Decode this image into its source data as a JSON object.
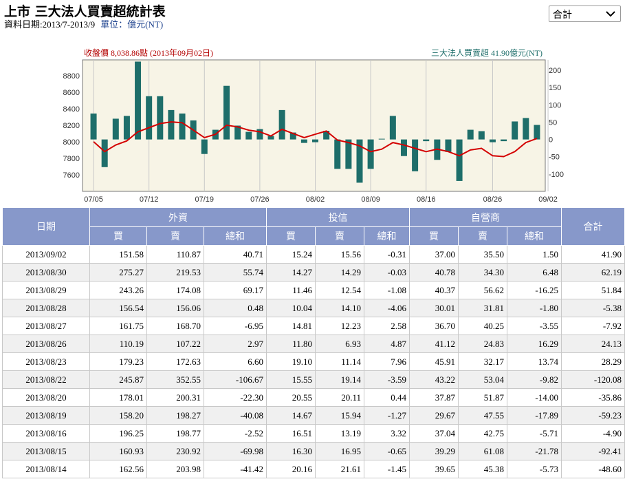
{
  "header": {
    "title": "上市 三大法人買賣超統計表",
    "date_range": "資料日期:2013/7-2013/9",
    "unit": "單位：億元(NT)"
  },
  "filter": {
    "selected": "合計"
  },
  "chart_data": {
    "type": "bar+line",
    "left_label": "收盤價 8,038.86點 (2013年09月02日)",
    "right_label": "三大法人買賣超 41.90億元(NT)",
    "colors": {
      "bar": "#1e6e6a",
      "line": "#d40000",
      "plot_bg": "#f7f4e6",
      "left_label": "#b30000",
      "right_label": "#1e6e6a"
    },
    "left_axis": {
      "min": 7400,
      "max": 8990,
      "ticks": [
        7600,
        7800,
        8000,
        8200,
        8400,
        8600,
        8800
      ]
    },
    "right_axis": {
      "min": -150,
      "max": 230,
      "ticks": [
        -100,
        -50,
        0,
        50,
        100,
        150,
        200
      ]
    },
    "x_tick_labels": [
      "07/05",
      "07/12",
      "07/19",
      "07/26",
      "08/02",
      "08/09",
      "08/16",
      "08/26",
      "09/02"
    ],
    "x_tick_index": [
      0,
      5,
      10,
      15,
      20,
      25,
      30,
      36,
      41
    ],
    "series": [
      {
        "kind": "bar",
        "values": [
          75,
          -80,
          60,
          68,
          225,
          125,
          125,
          85,
          75,
          55,
          -42,
          28,
          155,
          40,
          22,
          30,
          10,
          85,
          20,
          -10,
          -8,
          25,
          -85,
          -85,
          -125,
          -85,
          2,
          68,
          -48,
          -92,
          -5,
          -59,
          -36,
          -120,
          28,
          24,
          -8,
          -5,
          52,
          62,
          42
        ]
      },
      {
        "kind": "line",
        "values": [
          8000,
          7880,
          7960,
          8010,
          8120,
          8170,
          8220,
          8240,
          8230,
          8140,
          8050,
          8090,
          8200,
          8180,
          8140,
          8120,
          8070,
          8150,
          8100,
          8050,
          8090,
          8130,
          8020,
          7990,
          7950,
          7880,
          7910,
          7990,
          7960,
          7920,
          7880,
          7910,
          7880,
          7830,
          7900,
          7920,
          7830,
          7820,
          7880,
          7990,
          8039
        ]
      }
    ]
  },
  "table": {
    "group_headers": {
      "date": "日期",
      "foreign": "外資",
      "trust": "投信",
      "dealer": "自營商",
      "total": "合計"
    },
    "sub_headers": [
      "買",
      "賣",
      "總和",
      "買",
      "賣",
      "總和",
      "買",
      "賣",
      "總和"
    ],
    "rows": [
      [
        "2013/09/02",
        "151.58",
        "110.87",
        "40.71",
        "15.24",
        "15.56",
        "-0.31",
        "37.00",
        "35.50",
        "1.50",
        "41.90"
      ],
      [
        "2013/08/30",
        "275.27",
        "219.53",
        "55.74",
        "14.27",
        "14.29",
        "-0.03",
        "40.78",
        "34.30",
        "6.48",
        "62.19"
      ],
      [
        "2013/08/29",
        "243.26",
        "174.08",
        "69.17",
        "11.46",
        "12.54",
        "-1.08",
        "40.37",
        "56.62",
        "-16.25",
        "51.84"
      ],
      [
        "2013/08/28",
        "156.54",
        "156.06",
        "0.48",
        "10.04",
        "14.10",
        "-4.06",
        "30.01",
        "31.81",
        "-1.80",
        "-5.38"
      ],
      [
        "2013/08/27",
        "161.75",
        "168.70",
        "-6.95",
        "14.81",
        "12.23",
        "2.58",
        "36.70",
        "40.25",
        "-3.55",
        "-7.92"
      ],
      [
        "2013/08/26",
        "110.19",
        "107.22",
        "2.97",
        "11.80",
        "6.93",
        "4.87",
        "41.12",
        "24.83",
        "16.29",
        "24.13"
      ],
      [
        "2013/08/23",
        "179.23",
        "172.63",
        "6.60",
        "19.10",
        "11.14",
        "7.96",
        "45.91",
        "32.17",
        "13.74",
        "28.29"
      ],
      [
        "2013/08/22",
        "245.87",
        "352.55",
        "-106.67",
        "15.55",
        "19.14",
        "-3.59",
        "43.22",
        "53.04",
        "-9.82",
        "-120.08"
      ],
      [
        "2013/08/20",
        "178.01",
        "200.31",
        "-22.30",
        "20.55",
        "20.11",
        "0.44",
        "37.87",
        "51.87",
        "-14.00",
        "-35.86"
      ],
      [
        "2013/08/19",
        "158.20",
        "198.27",
        "-40.08",
        "14.67",
        "15.94",
        "-1.27",
        "29.67",
        "47.55",
        "-17.89",
        "-59.23"
      ],
      [
        "2013/08/16",
        "196.25",
        "198.77",
        "-2.52",
        "16.51",
        "13.19",
        "3.32",
        "37.04",
        "42.75",
        "-5.71",
        "-4.90"
      ],
      [
        "2013/08/15",
        "160.93",
        "230.92",
        "-69.98",
        "16.30",
        "16.95",
        "-0.65",
        "39.29",
        "61.08",
        "-21.78",
        "-92.41"
      ],
      [
        "2013/08/14",
        "162.56",
        "203.98",
        "-41.42",
        "20.16",
        "21.61",
        "-1.45",
        "39.65",
        "45.38",
        "-5.73",
        "-48.60"
      ]
    ]
  }
}
